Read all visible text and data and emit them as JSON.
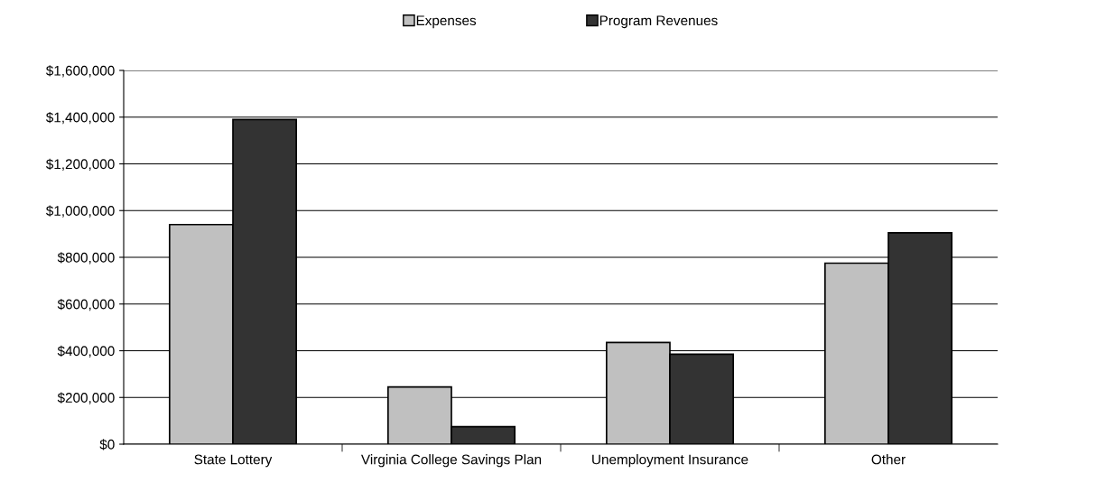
{
  "chart_data": {
    "type": "bar",
    "categories": [
      "State Lottery",
      "Virginia College Savings Plan",
      "Unemployment Insurance",
      "Other"
    ],
    "series": [
      {
        "name": "Expenses",
        "color": "#c0c0c0",
        "values": [
          940000,
          245000,
          435000,
          775000
        ]
      },
      {
        "name": "Program Revenues",
        "color": "#333333",
        "values": [
          1390000,
          75000,
          385000,
          905000
        ]
      }
    ],
    "ylim": [
      0,
      1600000
    ],
    "yticks": [
      {
        "value": 0,
        "label": "$0"
      },
      {
        "value": 200000,
        "label": "$200,000"
      },
      {
        "value": 400000,
        "label": "$400,000"
      },
      {
        "value": 600000,
        "label": "$600,000"
      },
      {
        "value": 800000,
        "label": "$800,000"
      },
      {
        "value": 1000000,
        "label": "$1,000,000"
      },
      {
        "value": 1200000,
        "label": "$1,200,000"
      },
      {
        "value": 1400000,
        "label": "$1,400,000"
      },
      {
        "value": 1600000,
        "label": "$1,600,000"
      }
    ],
    "grid": "y",
    "legend": "top"
  }
}
